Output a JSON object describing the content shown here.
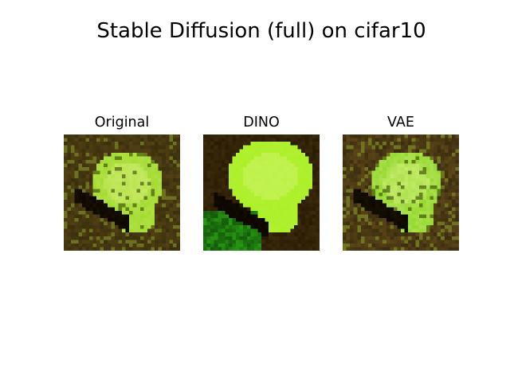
{
  "figure": {
    "title": "Stable Diffusion (full) on cifar10"
  },
  "panels": [
    {
      "title": "Original",
      "image_description_icon": "frog-image-original",
      "palette": {
        "background": "#3a2f0c",
        "subject": "#9fd92a",
        "shadow": "#0b0600"
      }
    },
    {
      "title": "DINO",
      "image_description_icon": "frog-image-dino",
      "palette": {
        "background": "#2a1c04",
        "subject": "#a5ef1c",
        "shadow": "#0a0500"
      }
    },
    {
      "title": "VAE",
      "image_description_icon": "frog-image-vae",
      "palette": {
        "background": "#3a2c0e",
        "subject": "#8fd62a",
        "shadow": "#0b0600"
      }
    }
  ]
}
